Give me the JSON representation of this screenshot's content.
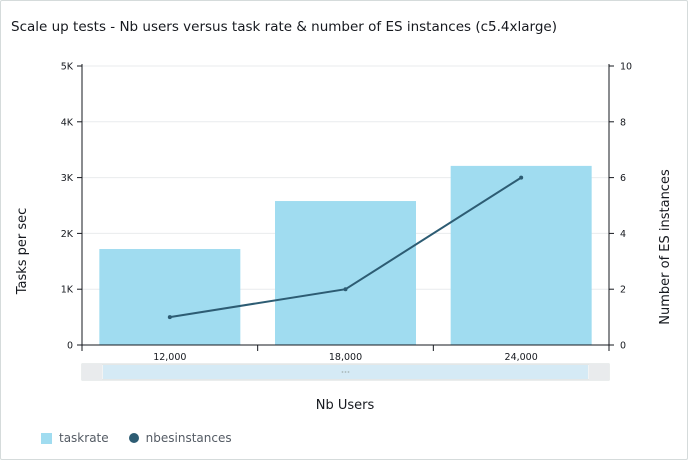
{
  "title": "Scale up tests - Nb users versus task rate & number of ES instances (c5.4xlarge)",
  "colors": {
    "bar": "#a0dcf0",
    "line": "#2d5c73",
    "grid": "#e9ebed",
    "axis": "#16191f"
  },
  "chart_data": {
    "type": "bar",
    "categories": [
      "12,000",
      "18,000",
      "24,000"
    ],
    "xlabel": "Nb Users",
    "ylabel": "Tasks per sec",
    "y2label": "Number of ES instances",
    "ylim": [
      0,
      5000
    ],
    "y2lim": [
      0,
      10
    ],
    "yticks": [
      "0",
      "1K",
      "2K",
      "3K",
      "4K",
      "5K"
    ],
    "y2ticks": [
      "0",
      "2",
      "4",
      "6",
      "8",
      "10"
    ],
    "grid": true,
    "legend_position": "bottom-left",
    "series": [
      {
        "name": "taskrate",
        "type": "bar",
        "axis": "left",
        "values": [
          1720,
          2580,
          3210
        ]
      },
      {
        "name": "nbesinstances",
        "type": "line",
        "axis": "right",
        "values": [
          1,
          2,
          6
        ]
      }
    ]
  }
}
